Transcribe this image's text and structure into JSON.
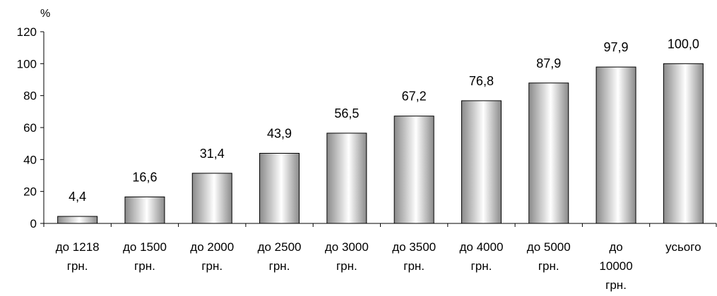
{
  "chart_data": {
    "type": "bar",
    "unit_label": "%",
    "categories": [
      [
        "до 1218",
        "грн."
      ],
      [
        "до 1500",
        "грн."
      ],
      [
        "до 2000",
        "грн."
      ],
      [
        "до 2500",
        "грн."
      ],
      [
        "до 3000",
        "грн."
      ],
      [
        "до 3500",
        "грн."
      ],
      [
        "до 4000",
        "грн."
      ],
      [
        "до 5000",
        "грн."
      ],
      [
        "до",
        "10000",
        "грн."
      ],
      [
        "усього"
      ]
    ],
    "values": [
      4.4,
      16.6,
      31.4,
      43.9,
      56.5,
      67.2,
      76.8,
      87.9,
      97.9,
      100.0
    ],
    "value_labels": [
      "4,4",
      "16,6",
      "31,4",
      "43,9",
      "56,5",
      "67,2",
      "76,8",
      "87,9",
      "97,9",
      "100,0"
    ],
    "ylim": [
      0,
      120
    ],
    "yticks": [
      0,
      20,
      40,
      60,
      80,
      100,
      120
    ],
    "grid": false,
    "legend": "none",
    "colors": {
      "bar_dark": "#8a8a8a",
      "bar_light": "#ffffff",
      "bar_outline": "#000000",
      "axis": "#000000"
    }
  }
}
